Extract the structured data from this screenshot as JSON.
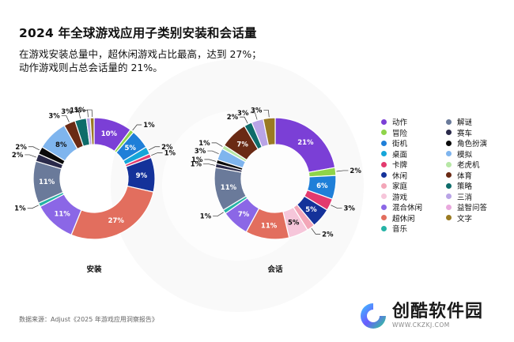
{
  "title": "2024 年全球游戏应用子类别安装和会话量",
  "subtitle": [
    "在游戏安装总量中，超休闲游戏占比最高，达到 27%；",
    "动作游戏则占总会话量的 21%。"
  ],
  "source": "数据来源：Adjust《2025 年游戏应用洞察报告》",
  "watermark": {
    "name": "创酷软件园",
    "url": "WWW.CKZKJ.COM"
  },
  "categories": [
    {
      "name": "动作",
      "color": "#7B3FD6"
    },
    {
      "name": "解谜",
      "color": "#6A7A9A"
    },
    {
      "name": "冒险",
      "color": "#8FD44A"
    },
    {
      "name": "赛车",
      "color": "#2A2A4A"
    },
    {
      "name": "街机",
      "color": "#1F7FD8"
    },
    {
      "name": "角色扮演",
      "color": "#0A0A0A"
    },
    {
      "name": "桌面",
      "color": "#16A6D9"
    },
    {
      "name": "模拟",
      "color": "#7FB5EE"
    },
    {
      "name": "卡牌",
      "color": "#E33A6E"
    },
    {
      "name": "老虎机",
      "color": "#B7E7A6"
    },
    {
      "name": "休闲",
      "color": "#14329A"
    },
    {
      "name": "体育",
      "color": "#6A2A14"
    },
    {
      "name": "家庭",
      "color": "#F3A6B8"
    },
    {
      "name": "策略",
      "color": "#0E6C6A"
    },
    {
      "name": "游戏",
      "color": "#F6C6DA"
    },
    {
      "name": "三消",
      "color": "#B9A4E6"
    },
    {
      "name": "混合休闲",
      "color": "#8B67E6"
    },
    {
      "name": "益智问答",
      "color": "#E9A8DD"
    },
    {
      "name": "超休闲",
      "color": "#E26E5E"
    },
    {
      "name": "文字",
      "color": "#9A7A22"
    },
    {
      "name": "音乐",
      "color": "#26B3A6"
    }
  ],
  "chart_data": [
    {
      "type": "pie",
      "title": "安装",
      "unit": "%",
      "slices": [
        {
          "category": "动作",
          "value": 10
        },
        {
          "category": "冒险",
          "value": 1
        },
        {
          "category": "街机",
          "value": 5
        },
        {
          "category": "桌面",
          "value": 2
        },
        {
          "category": "卡牌",
          "value": 1
        },
        {
          "category": "休闲",
          "value": 9
        },
        {
          "category": "超休闲",
          "value": 27
        },
        {
          "category": "混合休闲",
          "value": 11
        },
        {
          "category": "音乐",
          "value": 1
        },
        {
          "category": "解谜",
          "value": 11
        },
        {
          "category": "赛车",
          "value": 2
        },
        {
          "category": "角色扮演",
          "value": 2
        },
        {
          "category": "模拟",
          "value": 8
        },
        {
          "category": "体育",
          "value": 3
        },
        {
          "category": "策略",
          "value": 3
        },
        {
          "category": "三消",
          "value": 1
        },
        {
          "category": "文字",
          "value": 1
        }
      ]
    },
    {
      "type": "pie",
      "title": "会话",
      "unit": "%",
      "slices": [
        {
          "category": "动作",
          "value": 21
        },
        {
          "category": "冒险",
          "value": 2
        },
        {
          "category": "街机",
          "value": 6
        },
        {
          "category": "卡牌",
          "value": 3
        },
        {
          "category": "休闲",
          "value": 5
        },
        {
          "category": "家庭",
          "value": 2
        },
        {
          "category": "游戏",
          "value": 5
        },
        {
          "category": "超休闲",
          "value": 11
        },
        {
          "category": "混合休闲",
          "value": 7
        },
        {
          "category": "音乐",
          "value": 1
        },
        {
          "category": "解谜",
          "value": 11
        },
        {
          "category": "赛车",
          "value": 1
        },
        {
          "category": "角色扮演",
          "value": 1
        },
        {
          "category": "模拟",
          "value": 3
        },
        {
          "category": "老虎机",
          "value": 1
        },
        {
          "category": "体育",
          "value": 7
        },
        {
          "category": "策略",
          "value": 2
        },
        {
          "category": "三消",
          "value": 3
        },
        {
          "category": "文字",
          "value": 3
        }
      ]
    }
  ]
}
